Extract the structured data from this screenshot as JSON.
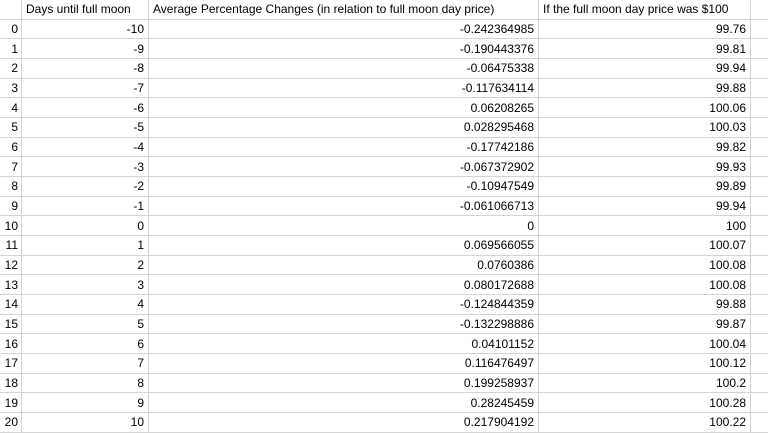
{
  "table": {
    "headers": {
      "corner": "",
      "days": "Days until full moon",
      "pct_change": "Average Percentage Changes (in relation to full moon day price)",
      "price": "If the full moon day price was $100"
    },
    "rows": [
      [
        "0",
        "-10",
        "-0.242364985",
        "99.76"
      ],
      [
        "1",
        "-9",
        "-0.190443376",
        "99.81"
      ],
      [
        "2",
        "-8",
        "-0.06475338",
        "99.94"
      ],
      [
        "3",
        "-7",
        "-0.117634114",
        "99.88"
      ],
      [
        "4",
        "-6",
        "0.06208265",
        "100.06"
      ],
      [
        "5",
        "-5",
        "0.028295468",
        "100.03"
      ],
      [
        "6",
        "-4",
        "-0.17742186",
        "99.82"
      ],
      [
        "7",
        "-3",
        "-0.067372902",
        "99.93"
      ],
      [
        "8",
        "-2",
        "-0.10947549",
        "99.89"
      ],
      [
        "9",
        "-1",
        "-0.061066713",
        "99.94"
      ],
      [
        "10",
        "0",
        "0",
        "100"
      ],
      [
        "11",
        "1",
        "0.069566055",
        "100.07"
      ],
      [
        "12",
        "2",
        "0.0760386",
        "100.08"
      ],
      [
        "13",
        "3",
        "0.080172688",
        "100.08"
      ],
      [
        "14",
        "4",
        "-0.124844359",
        "99.88"
      ],
      [
        "15",
        "5",
        "-0.132298886",
        "99.87"
      ],
      [
        "16",
        "6",
        "0.04101152",
        "100.04"
      ],
      [
        "17",
        "7",
        "0.116476497",
        "100.12"
      ],
      [
        "18",
        "8",
        "0.199258937",
        "100.2"
      ],
      [
        "19",
        "9",
        "0.28245459",
        "100.28"
      ],
      [
        "20",
        "10",
        "0.217904192",
        "100.22"
      ]
    ]
  },
  "colors": {
    "gridline": "#d4d4d4",
    "text": "#000000",
    "background": "#ffffff"
  }
}
